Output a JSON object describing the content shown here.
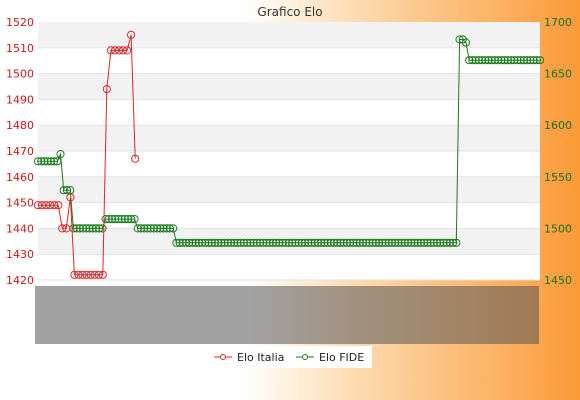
{
  "chart_data": {
    "type": "line",
    "title": "Grafico Elo",
    "y_left": {
      "min": 1420,
      "max": 1520,
      "step": 10,
      "color": "#c81818",
      "ticks": [
        "1420",
        "1430",
        "1440",
        "1450",
        "1460",
        "1470",
        "1480",
        "1490",
        "1500",
        "1510",
        "1520"
      ]
    },
    "y_right": {
      "min": 1450,
      "max": 1700,
      "step": 50,
      "color": "#1a6e1a",
      "ticks": [
        "1450",
        "1500",
        "1550",
        "1600",
        "1650",
        "1700"
      ]
    },
    "grid": "horizontal bands",
    "legend_position": "bottom-center",
    "series": [
      {
        "name": "Elo Italia",
        "axis": "left",
        "color": "#d42a2a",
        "values": [
          1449,
          1449,
          1449,
          1449,
          1449,
          1449,
          1440,
          1440,
          1452,
          1422,
          1422,
          1422,
          1422,
          1422,
          1422,
          1422,
          1422,
          1494,
          1509,
          1509,
          1509,
          1509,
          1509,
          1515,
          1467
        ]
      },
      {
        "name": "Elo FIDE",
        "axis": "right",
        "color": "#1d7a1d",
        "values": [
          1565,
          1565,
          1565,
          1565,
          1565,
          1565,
          1565,
          1572,
          1537,
          1537,
          1537,
          1500,
          1500,
          1500,
          1500,
          1500,
          1500,
          1500,
          1500,
          1500,
          1500,
          1509,
          1509,
          1509,
          1509,
          1509,
          1509,
          1509,
          1509,
          1509,
          1509,
          1500,
          1500,
          1500,
          1500,
          1500,
          1500,
          1500,
          1500,
          1500,
          1500,
          1500,
          1500,
          1486,
          1486,
          1486,
          1486,
          1486,
          1486,
          1486,
          1486,
          1486,
          1486,
          1486,
          1486,
          1486,
          1486,
          1486,
          1486,
          1486,
          1486,
          1486,
          1486,
          1486,
          1486,
          1486,
          1486,
          1486,
          1486,
          1486,
          1486,
          1486,
          1486,
          1486,
          1486,
          1486,
          1486,
          1486,
          1486,
          1486,
          1486,
          1486,
          1486,
          1486,
          1486,
          1486,
          1486,
          1486,
          1486,
          1486,
          1486,
          1486,
          1486,
          1486,
          1486,
          1486,
          1486,
          1486,
          1486,
          1486,
          1486,
          1486,
          1486,
          1486,
          1486,
          1486,
          1486,
          1486,
          1486,
          1486,
          1486,
          1486,
          1486,
          1486,
          1486,
          1486,
          1486,
          1486,
          1486,
          1486,
          1486,
          1486,
          1486,
          1486,
          1486,
          1486,
          1486,
          1486,
          1486,
          1486,
          1486,
          1683,
          1683,
          1680,
          1663,
          1663,
          1663,
          1663,
          1663,
          1663,
          1663,
          1663,
          1663,
          1663,
          1663,
          1663,
          1663,
          1663,
          1663,
          1663,
          1663,
          1663,
          1663,
          1663,
          1663,
          1663,
          1663
        ]
      }
    ]
  }
}
